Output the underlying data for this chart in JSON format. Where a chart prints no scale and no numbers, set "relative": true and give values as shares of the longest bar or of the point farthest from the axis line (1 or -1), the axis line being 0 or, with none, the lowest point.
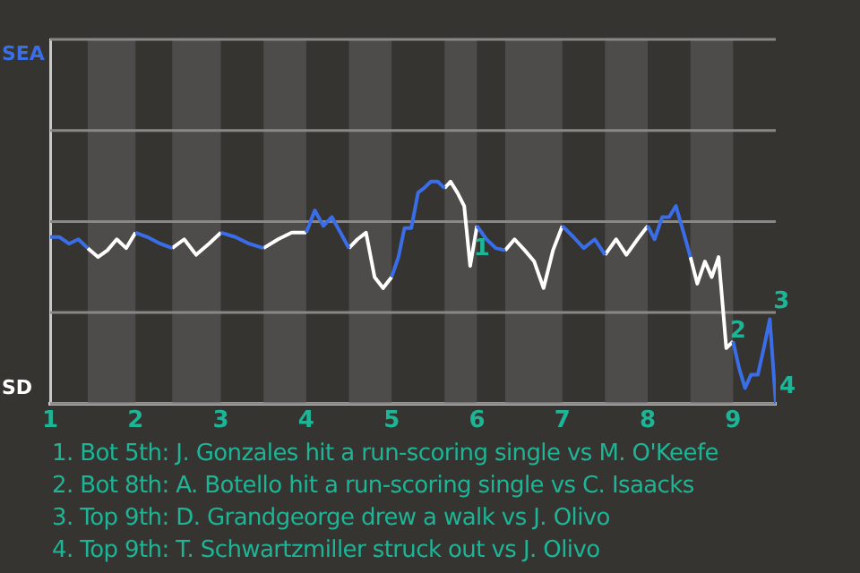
{
  "chart_data": {
    "type": "line",
    "relative": true,
    "x": [
      1,
      1.11,
      1.22,
      1.33,
      1.44,
      1.56,
      1.67,
      1.78,
      1.89,
      2,
      2.14,
      2.29,
      2.43,
      2.57,
      2.71,
      2.86,
      3,
      3.17,
      3.33,
      3.5,
      3.67,
      3.83,
      4,
      4.1,
      4.2,
      4.3,
      4.4,
      4.5,
      4.6,
      4.7,
      4.8,
      4.9,
      5,
      5.08,
      5.15,
      5.23,
      5.31,
      5.38,
      5.46,
      5.54,
      5.62,
      5.69,
      5.77,
      5.85,
      5.92,
      6,
      6.11,
      6.22,
      6.33,
      6.44,
      6.56,
      6.67,
      6.78,
      6.89,
      7,
      7.13,
      7.25,
      7.38,
      7.5,
      7.63,
      7.75,
      7.88,
      8,
      8.08,
      8.17,
      8.25,
      8.33,
      8.42,
      8.5,
      8.58,
      8.67,
      8.75,
      8.83,
      8.92,
      9,
      9.07,
      9.14,
      9.21,
      9.29,
      9.36,
      9.43,
      9.5
    ],
    "xlim": [
      1,
      9.5
    ],
    "xticks": [
      1,
      2,
      3,
      4,
      5,
      6,
      7,
      8,
      9
    ],
    "series": [
      {
        "color": "#3a6ee8",
        "values": [
          0.75,
          0.75,
          0.72,
          0.74,
          0.7,
          null,
          null,
          null,
          null,
          0.77,
          0.75,
          0.72,
          0.7,
          null,
          null,
          null,
          0.77,
          0.75,
          0.72,
          0.7,
          null,
          null,
          0.77,
          0.87,
          0.8,
          0.84,
          0.77,
          0.7,
          null,
          null,
          null,
          null,
          0.57,
          0.66,
          0.79,
          0.79,
          0.95,
          0.97,
          1,
          1,
          0.97,
          null,
          null,
          null,
          null,
          0.8,
          0.74,
          0.7,
          0.69,
          null,
          null,
          null,
          null,
          null,
          0.8,
          0.75,
          0.7,
          0.74,
          0.67,
          null,
          null,
          null,
          0.8,
          0.74,
          0.84,
          0.84,
          0.89,
          0.77,
          0.66,
          null,
          null,
          null,
          null,
          null,
          0.28,
          0.16,
          0.07,
          0.13,
          0.13,
          0.25,
          0.38,
          0
        ]
      },
      {
        "color": "#ffffff",
        "values": [
          null,
          null,
          null,
          null,
          0.7,
          0.66,
          0.69,
          0.74,
          0.7,
          0.77,
          null,
          null,
          0.7,
          0.74,
          0.67,
          0.72,
          0.77,
          null,
          null,
          0.7,
          0.74,
          0.77,
          0.77,
          null,
          null,
          null,
          null,
          0.7,
          0.74,
          0.77,
          0.57,
          0.52,
          0.57,
          null,
          null,
          null,
          null,
          null,
          null,
          null,
          0.97,
          1,
          0.95,
          0.89,
          0.62,
          0.8,
          null,
          null,
          0.69,
          0.74,
          0.69,
          0.64,
          0.52,
          0.69,
          0.8,
          null,
          null,
          null,
          0.67,
          0.74,
          0.67,
          0.74,
          0.8,
          null,
          null,
          null,
          null,
          null,
          0.66,
          0.54,
          0.64,
          0.57,
          0.66,
          0.25,
          0.28,
          null,
          null,
          null,
          null,
          null,
          null,
          null
        ]
      }
    ],
    "ref_lines": [
      {
        "axis": "y",
        "value": 1.64,
        "label": "SEA"
      },
      {
        "axis": "y",
        "value": 1.23
      },
      {
        "axis": "y",
        "value": 0.82
      },
      {
        "axis": "y",
        "value": 0.41
      },
      {
        "axis": "y",
        "value": 0,
        "label": "SD"
      }
    ],
    "bands": [
      {
        "axis": "x",
        "from": 1.44,
        "to": 2,
        "color": "#4e4c4a"
      },
      {
        "axis": "x",
        "from": 2.43,
        "to": 3,
        "color": "#4e4c4a"
      },
      {
        "axis": "x",
        "from": 3.5,
        "to": 4,
        "color": "#4e4c4a"
      },
      {
        "axis": "x",
        "from": 4.5,
        "to": 5,
        "color": "#4e4c4a"
      },
      {
        "axis": "x",
        "from": 5.62,
        "to": 6,
        "color": "#4e4c4a"
      },
      {
        "axis": "x",
        "from": 6.33,
        "to": 7,
        "color": "#4e4c4a"
      },
      {
        "axis": "x",
        "from": 7.5,
        "to": 8,
        "color": "#4e4c4a"
      },
      {
        "axis": "x",
        "from": 8.5,
        "to": 9,
        "color": "#4e4c4a"
      }
    ],
    "legend": false,
    "marker": "none",
    "annotations": [
      {
        "text": "1",
        "x": 5.92,
        "y": 0.62
      },
      {
        "text": "2",
        "x": 8.92,
        "y": 0.25
      },
      {
        "text": "3",
        "x": 9.43,
        "y": 0.38
      },
      {
        "text": "4",
        "x": 9.5,
        "y": 0
      },
      "1. Bot 5th: J. Gonzales hit a run-scoring single vs M. O'Keefe",
      "2. Bot 8th: A. Botello hit a run-scoring single vs C. Isaacks",
      "3. Top 9th: D. Grandgeorge drew a walk vs J. Olivo",
      "4. Top 9th: T. Schwartzmiller struck out vs J. Olivo"
    ]
  }
}
